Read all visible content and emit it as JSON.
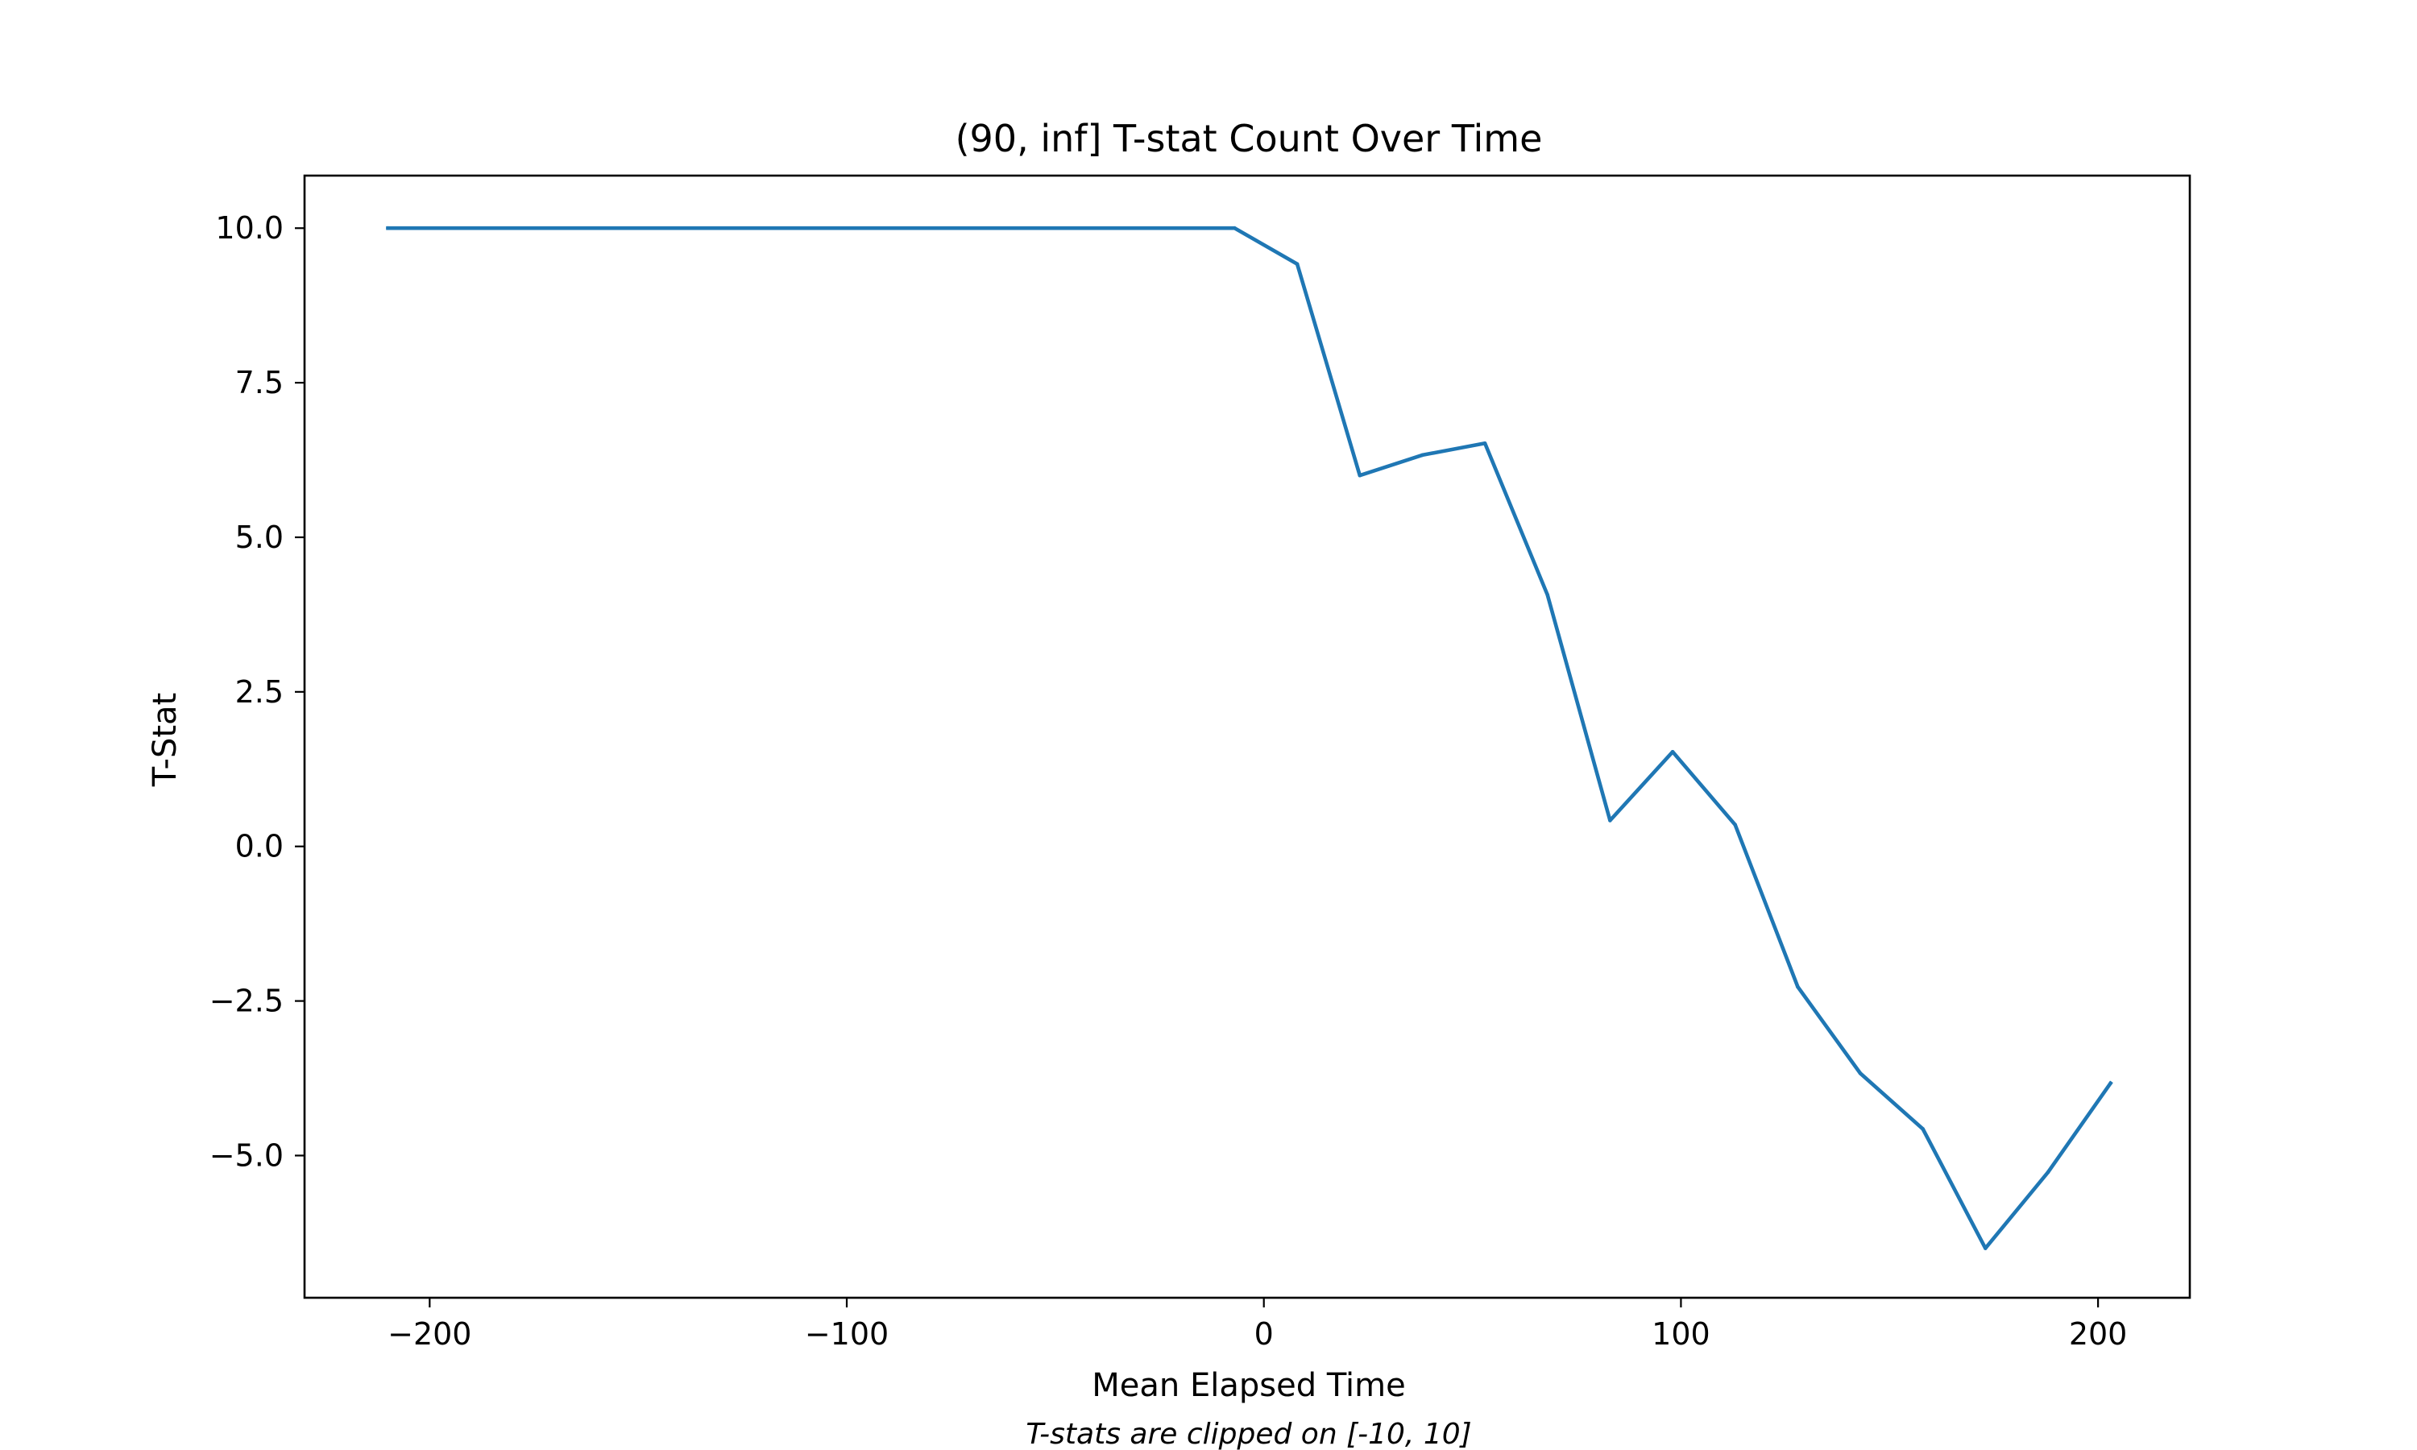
{
  "chart_data": {
    "type": "line",
    "title": "(90, inf] T-stat Count Over Time",
    "xlabel": "Mean Elapsed Time",
    "ylabel": "T-Stat",
    "caption": "T-stats are clipped on [-10, 10]",
    "xlim": [
      -230,
      222
    ],
    "ylim": [
      -7.3,
      10.85
    ],
    "xticks": [
      -200,
      -100,
      0,
      100,
      200
    ],
    "xtick_labels": [
      "−200",
      "−100",
      "0",
      "100",
      "200"
    ],
    "yticks": [
      10.0,
      7.5,
      5.0,
      2.5,
      0.0,
      -2.5,
      -5.0
    ],
    "ytick_labels": [
      "10.0",
      "7.5",
      "5.0",
      "2.5",
      "0.0",
      "−2.5",
      "−5.0"
    ],
    "grid": false,
    "colors": {
      "line": "#1f77b4",
      "axes": "#000000",
      "background": "#ffffff"
    },
    "series": [
      {
        "x": [
          -210,
          -7,
          8,
          23,
          38,
          53,
          68,
          83,
          98,
          113,
          128,
          143,
          158,
          173,
          188,
          203
        ],
        "y": [
          10.0,
          10.0,
          9.42,
          6.0,
          6.33,
          6.52,
          4.07,
          0.42,
          1.53,
          0.35,
          -2.27,
          -3.67,
          -4.57,
          -6.5,
          -5.27,
          -3.83
        ]
      }
    ]
  }
}
